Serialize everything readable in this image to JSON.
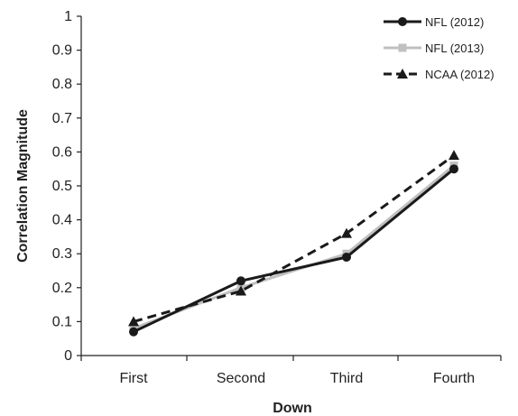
{
  "chart_data": {
    "type": "line",
    "title": "",
    "xlabel": "Down",
    "ylabel": "Correlation Magnitude",
    "categories": [
      "First",
      "Second",
      "Third",
      "Fourth"
    ],
    "ylim": [
      0,
      1
    ],
    "yticks": [
      "0",
      "0.1",
      "0.2",
      "0.3",
      "0.4",
      "0.5",
      "0.6",
      "0.7",
      "0.8",
      "0.9",
      "1"
    ],
    "grid": false,
    "legend_position": "top-right",
    "series": [
      {
        "name": "NFL (2012)",
        "values": [
          0.07,
          0.22,
          0.29,
          0.55
        ],
        "color": "#1a1a1a",
        "marker": "circle",
        "dash": "solid"
      },
      {
        "name": "NFL (2013)",
        "values": [
          0.08,
          0.2,
          0.3,
          0.56
        ],
        "color": "#c0c0c0",
        "marker": "square",
        "dash": "solid"
      },
      {
        "name": "NCAA (2012)",
        "values": [
          0.1,
          0.19,
          0.36,
          0.59
        ],
        "color": "#1a1a1a",
        "marker": "triangle",
        "dash": "dashed"
      }
    ]
  }
}
